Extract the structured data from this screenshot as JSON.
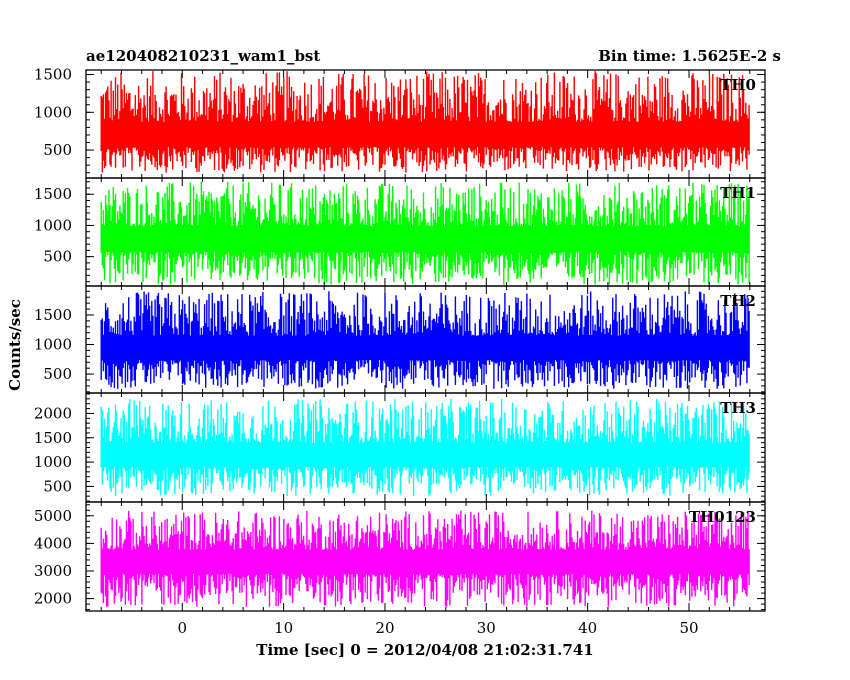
{
  "header": {
    "title": "ae120408210231_wam1_bst",
    "bin_time": "Bin time: 1.5625E-2 s"
  },
  "chart_data": {
    "type": "line",
    "xlabel": "Time [sec] 0 = 2012/04/08 21:02:31.741",
    "ylabel": "Counts/sec",
    "xlim": [
      -9.5,
      57.5
    ],
    "x_ticks": [
      0,
      10,
      20,
      30,
      40,
      50
    ],
    "x_range_data": [
      -8,
      56
    ],
    "grid": false,
    "panels": [
      {
        "name": "TH0",
        "color": "#ff0000",
        "ylim": [
          130,
          1560
        ],
        "y_ticks": [
          500,
          1000,
          1500
        ],
        "typical_range": [
          200,
          1550
        ],
        "mean": 650
      },
      {
        "name": "TH1",
        "color": "#00ff00",
        "ylim": [
          30,
          1760
        ],
        "y_ticks": [
          500,
          1000,
          1500
        ],
        "typical_range": [
          50,
          1700
        ],
        "mean": 750
      },
      {
        "name": "TH2",
        "color": "#0000ff",
        "ylim": [
          180,
          1990
        ],
        "y_ticks": [
          500,
          1000,
          1500
        ],
        "typical_range": [
          250,
          1900
        ],
        "mean": 900
      },
      {
        "name": "TH3",
        "color": "#00ffff",
        "ylim": [
          180,
          2420
        ],
        "y_ticks": [
          500,
          1000,
          1500,
          2000
        ],
        "typical_range": [
          300,
          2300
        ],
        "mean": 1100
      },
      {
        "name": "TH0123",
        "color": "#ff00ff",
        "ylim": [
          1550,
          5500
        ],
        "y_ticks": [
          2000,
          3000,
          4000,
          5000
        ],
        "typical_range": [
          1700,
          5200
        ],
        "mean": 3300
      }
    ]
  }
}
